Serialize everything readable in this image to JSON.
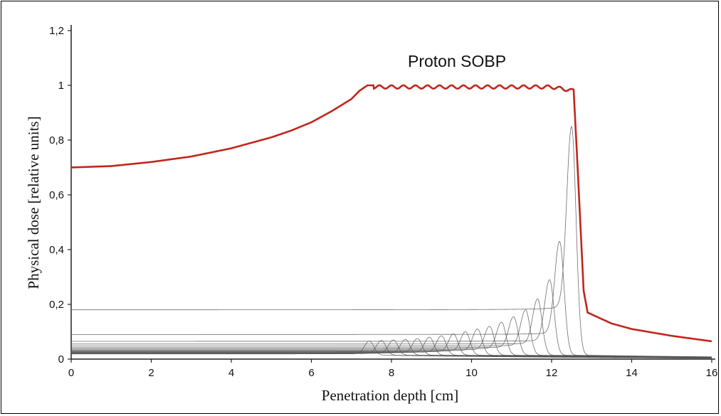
{
  "chart_data": {
    "type": "line",
    "title": "Proton SOBP",
    "xlabel": "Penetration depth [cm]",
    "ylabel": "Physical dose [relative units]",
    "xlim": [
      0,
      16
    ],
    "ylim": [
      0,
      1.2
    ],
    "x_ticks": [
      {
        "value": 0,
        "label": "0"
      },
      {
        "value": 2,
        "label": "2"
      },
      {
        "value": 4,
        "label": "4"
      },
      {
        "value": 6,
        "label": "6"
      },
      {
        "value": 8,
        "label": "8"
      },
      {
        "value": 10,
        "label": "10"
      },
      {
        "value": 12,
        "label": "12"
      },
      {
        "value": 14,
        "label": "14"
      },
      {
        "value": 16,
        "label": "16"
      }
    ],
    "y_ticks": [
      {
        "value": 0,
        "label": "0"
      },
      {
        "value": 0.2,
        "label": "0,2"
      },
      {
        "value": 0.4,
        "label": "0,4"
      },
      {
        "value": 0.6,
        "label": "0,6"
      },
      {
        "value": 0.8,
        "label": "0,8"
      },
      {
        "value": 1.0,
        "label": "1"
      },
      {
        "value": 1.2,
        "label": "1,2"
      }
    ],
    "grid": false,
    "legend": "none",
    "sobp_color": "#c0261b",
    "pristine_color": "#555555",
    "sobp": {
      "x": [
        0,
        1,
        2,
        3,
        4,
        5,
        5.5,
        6,
        6.5,
        7,
        7.2,
        7.4,
        7.6,
        8,
        9,
        10,
        11,
        12,
        12.4,
        12.55,
        12.65,
        12.8,
        12.9,
        13.5,
        14,
        15,
        16
      ],
      "y": [
        0.7,
        0.705,
        0.72,
        0.74,
        0.77,
        0.81,
        0.835,
        0.865,
        0.905,
        0.95,
        0.98,
        1.0,
        1.0,
        1.0,
        1.0,
        1.0,
        1.0,
        1.0,
        0.99,
        0.985,
        0.7,
        0.25,
        0.17,
        0.13,
        0.11,
        0.085,
        0.065
      ]
    },
    "pristine_peaks": [
      {
        "peak_depth": 12.5,
        "peak_dose": 0.85,
        "entrance_dose": 0.18
      },
      {
        "peak_depth": 12.2,
        "peak_dose": 0.43,
        "entrance_dose": 0.09
      },
      {
        "peak_depth": 11.95,
        "peak_dose": 0.29,
        "entrance_dose": 0.065
      },
      {
        "peak_depth": 11.65,
        "peak_dose": 0.22,
        "entrance_dose": 0.055
      },
      {
        "peak_depth": 11.35,
        "peak_dose": 0.18,
        "entrance_dose": 0.048
      },
      {
        "peak_depth": 11.05,
        "peak_dose": 0.155,
        "entrance_dose": 0.042
      },
      {
        "peak_depth": 10.75,
        "peak_dose": 0.135,
        "entrance_dose": 0.038
      },
      {
        "peak_depth": 10.45,
        "peak_dose": 0.12,
        "entrance_dose": 0.034
      },
      {
        "peak_depth": 10.15,
        "peak_dose": 0.11,
        "entrance_dose": 0.031
      },
      {
        "peak_depth": 9.85,
        "peak_dose": 0.1,
        "entrance_dose": 0.029
      },
      {
        "peak_depth": 9.55,
        "peak_dose": 0.092,
        "entrance_dose": 0.027
      },
      {
        "peak_depth": 9.25,
        "peak_dose": 0.085,
        "entrance_dose": 0.025
      },
      {
        "peak_depth": 8.95,
        "peak_dose": 0.08,
        "entrance_dose": 0.024
      },
      {
        "peak_depth": 8.65,
        "peak_dose": 0.075,
        "entrance_dose": 0.023
      },
      {
        "peak_depth": 8.35,
        "peak_dose": 0.072,
        "entrance_dose": 0.022
      },
      {
        "peak_depth": 8.05,
        "peak_dose": 0.07,
        "entrance_dose": 0.021
      },
      {
        "peak_depth": 7.75,
        "peak_dose": 0.068,
        "entrance_dose": 0.02
      },
      {
        "peak_depth": 7.45,
        "peak_dose": 0.066,
        "entrance_dose": 0.019
      }
    ]
  }
}
